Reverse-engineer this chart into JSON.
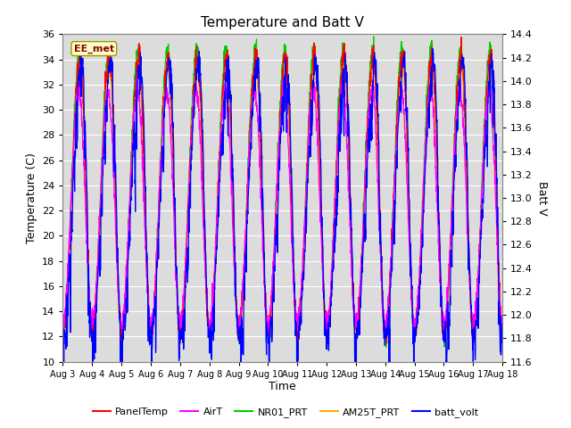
{
  "title": "Temperature and Batt V",
  "xlabel": "Time",
  "ylabel_left": "Temperature (C)",
  "ylabel_right": "Batt V",
  "ylim_left": [
    10,
    36
  ],
  "ylim_right": [
    11.6,
    14.4
  ],
  "yticks_left": [
    10,
    12,
    14,
    16,
    18,
    20,
    22,
    24,
    26,
    28,
    30,
    32,
    34,
    36
  ],
  "yticks_right": [
    11.6,
    11.8,
    12.0,
    12.2,
    12.4,
    12.6,
    12.8,
    13.0,
    13.2,
    13.4,
    13.6,
    13.8,
    14.0,
    14.2,
    14.4
  ],
  "xtick_labels": [
    "Aug 3",
    "Aug 4",
    "Aug 5",
    "Aug 6",
    "Aug 7",
    "Aug 8",
    "Aug 9",
    "Aug 10",
    "Aug 11",
    "Aug 12",
    "Aug 13",
    "Aug 14",
    "Aug 15",
    "Aug 16",
    "Aug 17",
    "Aug 18"
  ],
  "colors": {
    "PanelTemp": "#ff0000",
    "AirT": "#ff00ff",
    "NR01_PRT": "#00cc00",
    "AM25T_PRT": "#ffaa00",
    "batt_volt": "#0000ff"
  },
  "legend_label": "EE_met",
  "background_color": "#dcdcdc",
  "n_days": 15,
  "n_points_per_day": 144,
  "seed": 42
}
